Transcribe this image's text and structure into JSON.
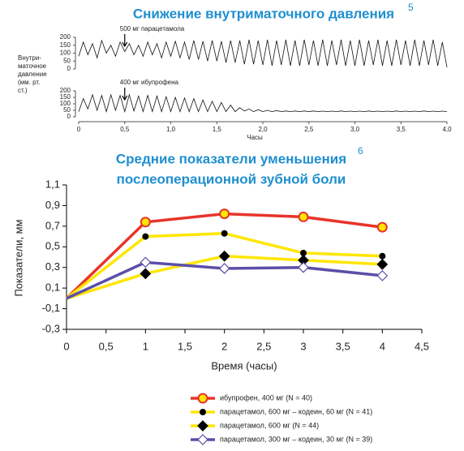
{
  "chart_data": [
    {
      "type": "line",
      "title": "Снижение внутриматочного давления",
      "title_note": "5",
      "ylabel_lines": [
        "Внутри-",
        "маточное",
        "давление",
        "(мм. рт.",
        "ст.)"
      ],
      "annotation": "500 мг парацетамола",
      "annotation_x": 0.5,
      "xlim": [
        0,
        4
      ],
      "ylim": [
        0,
        200
      ],
      "yticks": [
        0,
        50,
        100,
        150,
        200
      ],
      "color": "#111111",
      "x": [
        0,
        0.05,
        0.1,
        0.15,
        0.2,
        0.25,
        0.3,
        0.35,
        0.4,
        0.45,
        0.5,
        0.55,
        0.6,
        0.65,
        0.7,
        0.75,
        0.8,
        0.85,
        0.9,
        0.95,
        1,
        1.05,
        1.1,
        1.15,
        1.2,
        1.25,
        1.3,
        1.35,
        1.4,
        1.45,
        1.5,
        1.55,
        1.6,
        1.65,
        1.7,
        1.75,
        1.8,
        1.85,
        1.9,
        1.95,
        2,
        2.05,
        2.1,
        2.15,
        2.2,
        2.25,
        2.3,
        2.35,
        2.4,
        2.45,
        2.5,
        2.55,
        2.6,
        2.65,
        2.7,
        2.75,
        2.8,
        2.85,
        2.9,
        2.95,
        3,
        3.05,
        3.1,
        3.15,
        3.2,
        3.25,
        3.3,
        3.35,
        3.4,
        3.45,
        3.5,
        3.55,
        3.6,
        3.65,
        3.7,
        3.75,
        3.8,
        3.85,
        3.9,
        3.95,
        4
      ],
      "values": [
        80,
        170,
        90,
        160,
        70,
        180,
        100,
        150,
        80,
        170,
        110,
        160,
        90,
        150,
        80,
        170,
        90,
        160,
        70,
        170,
        80,
        175,
        70,
        170,
        60,
        180,
        60,
        175,
        50,
        180,
        50,
        175,
        40,
        180,
        40,
        180,
        30,
        185,
        30,
        180,
        25,
        185,
        20,
        180,
        25,
        185,
        20,
        180,
        20,
        185,
        25,
        180,
        20,
        185,
        20,
        180,
        25,
        185,
        20,
        180,
        20,
        185,
        20,
        180,
        25,
        185,
        20,
        180,
        20,
        185,
        25,
        180,
        20,
        185,
        20,
        180,
        25,
        185,
        20,
        170,
        10
      ]
    },
    {
      "type": "line",
      "annotation": "400 мг ибупрофена",
      "annotation_x": 0.5,
      "xlim": [
        0,
        4
      ],
      "ylim": [
        0,
        200
      ],
      "yticks": [
        0,
        50,
        100,
        150,
        200
      ],
      "color": "#111111",
      "xticks": [
        0,
        {
          "value": 0.5,
          "label": "0,5"
        },
        {
          "value": 1,
          "label": "1,0"
        },
        {
          "value": 1.5,
          "label": "1,5"
        },
        {
          "value": 2,
          "label": "2,0"
        },
        {
          "value": 2.5,
          "label": "2,5"
        },
        {
          "value": 3,
          "label": "3,0"
        },
        {
          "value": 3.5,
          "label": "3,5"
        },
        {
          "value": 4,
          "label": "4,0"
        }
      ],
      "xlabel": "Часы",
      "x": [
        0,
        0.05,
        0.1,
        0.15,
        0.2,
        0.25,
        0.3,
        0.35,
        0.4,
        0.45,
        0.5,
        0.55,
        0.6,
        0.65,
        0.7,
        0.75,
        0.8,
        0.85,
        0.9,
        0.95,
        1,
        1.05,
        1.1,
        1.15,
        1.2,
        1.25,
        1.3,
        1.35,
        1.4,
        1.45,
        1.5,
        1.55,
        1.6,
        1.65,
        1.7,
        1.75,
        1.8,
        1.85,
        1.9,
        1.95,
        2,
        2.05,
        2.1,
        2.15,
        2.2,
        2.25,
        2.3,
        2.35,
        2.4,
        2.45,
        2.5,
        2.55,
        2.6,
        2.65,
        2.7,
        2.75,
        2.8,
        2.85,
        2.9,
        2.95,
        3,
        3.05,
        3.1,
        3.15,
        3.2,
        3.25,
        3.3,
        3.35,
        3.4,
        3.45,
        3.5,
        3.55,
        3.6,
        3.65,
        3.7,
        3.75,
        3.8,
        3.85,
        3.9,
        3.95,
        4
      ],
      "values": [
        40,
        140,
        60,
        170,
        50,
        165,
        40,
        170,
        50,
        165,
        40,
        170,
        45,
        160,
        40,
        165,
        40,
        160,
        40,
        155,
        40,
        150,
        40,
        145,
        40,
        140,
        40,
        130,
        40,
        120,
        40,
        110,
        40,
        90,
        40,
        70,
        45,
        60,
        40,
        55,
        40,
        50,
        40,
        48,
        40,
        45,
        40,
        45,
        40,
        45,
        40,
        45,
        40,
        44,
        40,
        44,
        40,
        45,
        40,
        44,
        40,
        44,
        40,
        45,
        40,
        44,
        40,
        44,
        40,
        45,
        40,
        44,
        40,
        44,
        40,
        45,
        40,
        44,
        40,
        44,
        40
      ]
    },
    {
      "type": "line",
      "title_lines": [
        "Средние показатели уменьшения",
        "послеоперационной зубной боли"
      ],
      "title_note": "6",
      "xlabel": "Время (часы)",
      "ylabel": "Показатели, мм",
      "xlim": [
        0,
        4.5
      ],
      "ylim": [
        -0.3,
        1.1
      ],
      "xticks": [
        0,
        {
          "value": 0.5,
          "label": "0,5"
        },
        1,
        {
          "value": 1.5,
          "label": "1,5"
        },
        2,
        {
          "value": 2.5,
          "label": "2,5"
        },
        3,
        {
          "value": 3.5,
          "label": "3,5"
        },
        4,
        {
          "value": 4.5,
          "label": "4,5"
        }
      ],
      "yticks": [
        {
          "value": -0.3,
          "label": "-0,3"
        },
        {
          "value": -0.1,
          "label": "-0,1"
        },
        {
          "value": 0.1,
          "label": "0,1"
        },
        {
          "value": 0.3,
          "label": "0,3"
        },
        {
          "value": 0.5,
          "label": "0,5"
        },
        {
          "value": 0.7,
          "label": "0,7"
        },
        {
          "value": 0.9,
          "label": "0,9"
        },
        {
          "value": 1.1,
          "label": "1,1"
        }
      ],
      "x": [
        0,
        1,
        2,
        3,
        4
      ],
      "series": [
        {
          "name": "ибупрофен, 400 мг (N = 40)",
          "color": "#e8342a",
          "marker": "circle",
          "marker_fill": "#ffe600",
          "marker_stroke": "#e8342a",
          "values": [
            0,
            0.74,
            0.82,
            0.79,
            0.69
          ]
        },
        {
          "name": "парацетамол, 600 мг – кодеин, 60 мг (N = 41)",
          "color": "#ffe600",
          "marker": "dot",
          "marker_fill": "#000000",
          "marker_stroke": "#000000",
          "values": [
            0,
            0.6,
            0.63,
            0.44,
            0.41
          ]
        },
        {
          "name": "парацетамол, 600 мг (N = 44)",
          "color": "#ffe600",
          "marker": "diamond",
          "marker_fill": "#000000",
          "marker_stroke": "#000000",
          "values": [
            0,
            0.24,
            0.41,
            0.37,
            0.33
          ]
        },
        {
          "name": "парацетамол, 300 мг – кодеин, 30 мг (N = 39)",
          "color": "#5a4fa8",
          "marker": "diamond",
          "marker_fill": "#ffffff",
          "marker_stroke": "#5a4fa8",
          "values": [
            0,
            0.35,
            0.29,
            0.3,
            0.22
          ]
        }
      ]
    }
  ]
}
